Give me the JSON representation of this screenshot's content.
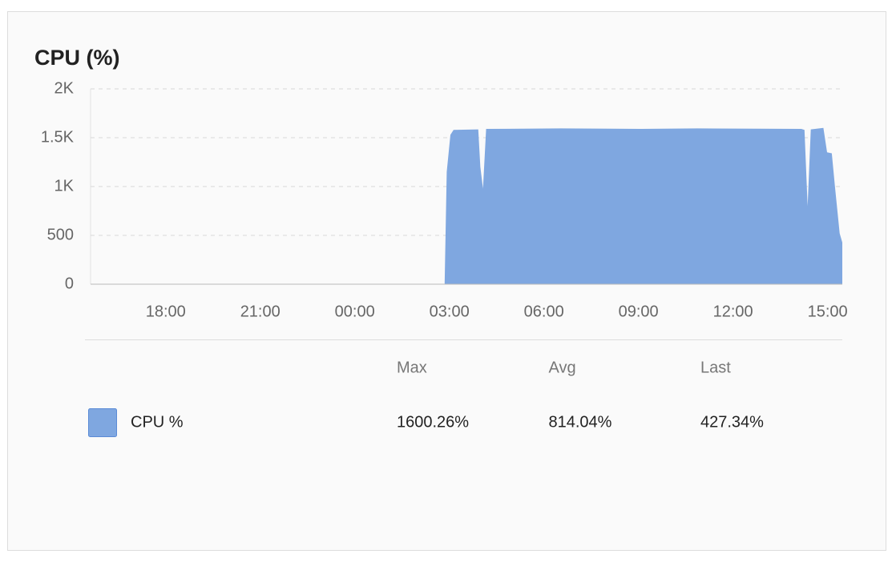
{
  "chart_data": {
    "type": "area",
    "title": "CPU (%)",
    "x": [
      "15:40",
      "02:51",
      "02:55",
      "03:02",
      "03:08",
      "03:55",
      "03:59",
      "04:04",
      "04:10",
      "06:32",
      "09:05",
      "10:52",
      "14:10",
      "14:16",
      "14:22",
      "14:28",
      "14:52",
      "14:59",
      "15:08",
      "15:14",
      "15:23",
      "15:28"
    ],
    "series": [
      {
        "name": "CPU %",
        "color": "#7fa7e0",
        "values": [
          0,
          0,
          1150,
          1530,
          1580,
          1585,
          1200,
          980,
          1590,
          1595,
          1590,
          1595,
          1590,
          1580,
          800,
          1585,
          1600,
          1350,
          1340,
          1000,
          520,
          427.34
        ],
        "stats": [
          "1600.26%",
          "814.04%",
          "427.34%"
        ]
      }
    ],
    "stats_columns": [
      "Max",
      "Avg",
      "Last"
    ],
    "xlim": [
      "15:37",
      "15:28"
    ],
    "xticks": [
      "18:00",
      "21:00",
      "00:00",
      "03:00",
      "06:00",
      "09:00",
      "12:00",
      "15:00"
    ],
    "ylim": [
      0,
      2000
    ],
    "yticks": [
      0,
      500,
      {
        "value": 1000,
        "label": "1K"
      },
      {
        "value": 1500,
        "label": "1.5K"
      },
      {
        "value": 2000,
        "label": "2K"
      }
    ],
    "grid": true
  }
}
